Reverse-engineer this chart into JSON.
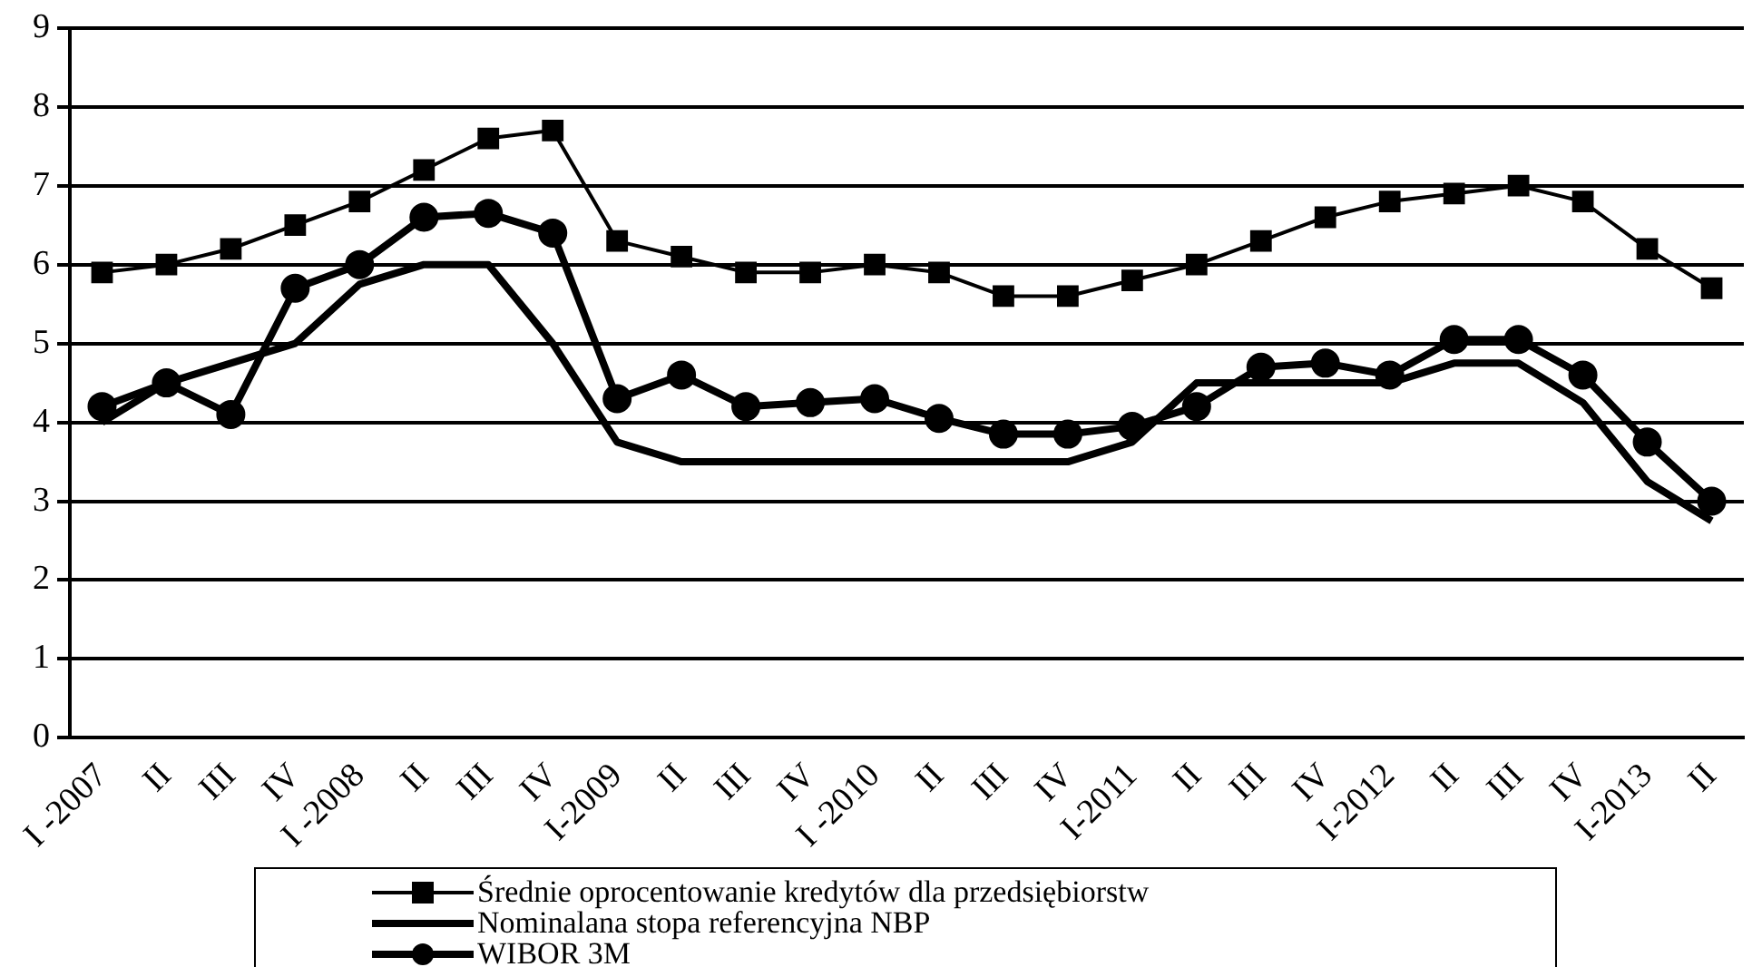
{
  "chart_data": {
    "type": "line",
    "categories": [
      "I -2007",
      "II",
      "III",
      "IV",
      "I -2008",
      "II",
      "III",
      "IV",
      "I-2009",
      "II",
      "III",
      "IV",
      "I -2010",
      "II",
      "III",
      "IV",
      "I-2011",
      "II",
      "III",
      "IV",
      "I-2012",
      "II",
      "III",
      "IV",
      "I-2013",
      "II"
    ],
    "series": [
      {
        "name": "Średnie oprocentowanie kredytów dla przedsiębiorstw",
        "color": "#000000",
        "marker": "square",
        "values": [
          5.9,
          6.0,
          6.2,
          6.5,
          6.8,
          7.2,
          7.6,
          7.7,
          6.3,
          6.1,
          5.9,
          5.9,
          6.0,
          5.9,
          5.6,
          5.6,
          5.8,
          6.0,
          6.3,
          6.6,
          6.8,
          6.9,
          7.0,
          6.8,
          6.2,
          5.7
        ]
      },
      {
        "name": "Nominalana stopa referencyjna NBP",
        "color": "#000000",
        "marker": "none",
        "values": [
          4.0,
          4.5,
          4.75,
          5.0,
          5.75,
          6.0,
          6.0,
          5.0,
          3.75,
          3.5,
          3.5,
          3.5,
          3.5,
          3.5,
          3.5,
          3.5,
          3.75,
          4.5,
          4.5,
          4.5,
          4.5,
          4.75,
          4.75,
          4.25,
          3.25,
          2.75
        ]
      },
      {
        "name": "WIBOR 3M",
        "color": "#000000",
        "marker": "circle",
        "values": [
          4.2,
          4.5,
          4.1,
          5.7,
          6.0,
          6.6,
          6.65,
          6.4,
          4.3,
          4.6,
          4.2,
          4.25,
          4.3,
          4.05,
          3.85,
          3.85,
          3.95,
          4.2,
          4.7,
          4.75,
          4.6,
          5.05,
          5.05,
          4.6,
          3.75,
          3.0
        ]
      }
    ],
    "ylim": [
      0,
      9
    ],
    "yticks": [
      0,
      1,
      2,
      3,
      4,
      5,
      6,
      7,
      8,
      9
    ],
    "grid": "y",
    "legend": "bottom",
    "line_style": "solid"
  }
}
